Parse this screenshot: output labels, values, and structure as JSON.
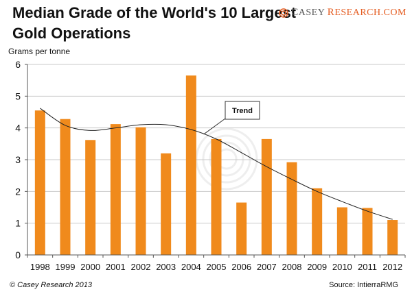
{
  "header": {
    "title_line1": "Median Grade of the World's 10 Largest",
    "title_line2": "Gold Operations",
    "brand_first": "C",
    "brand_first_rest": "ASEY",
    "brand_second": "R",
    "brand_second_rest": "ESEARCH.COM"
  },
  "footer": {
    "copyright": "© Casey Research 2013",
    "source": "Source: IntierraRMG"
  },
  "colors": {
    "bar": "#f08a1c",
    "trend": "#222222",
    "accent": "#e45a1e"
  },
  "chart_data": {
    "type": "bar",
    "title": "Median Grade of the World's 10 Largest Gold Operations",
    "ylabel": "Grams per tonne",
    "xlabel": "",
    "ylim": [
      0,
      6
    ],
    "yticks": [
      0,
      1,
      2,
      3,
      4,
      5,
      6
    ],
    "grid": "horizontal",
    "categories": [
      "1998",
      "1999",
      "2000",
      "2001",
      "2002",
      "2003",
      "2004",
      "2005",
      "2006",
      "2007",
      "2008",
      "2009",
      "2010",
      "2011",
      "2012"
    ],
    "values": [
      4.55,
      4.28,
      3.62,
      4.12,
      4.02,
      3.2,
      5.65,
      3.65,
      1.65,
      3.65,
      2.92,
      2.1,
      1.5,
      1.48,
      1.1
    ],
    "trend": {
      "label": "Trend",
      "values": [
        4.62,
        4.08,
        3.92,
        4.0,
        4.1,
        4.1,
        3.95,
        3.65,
        3.22,
        2.78,
        2.38,
        2.0,
        1.68,
        1.38,
        1.12
      ]
    }
  }
}
